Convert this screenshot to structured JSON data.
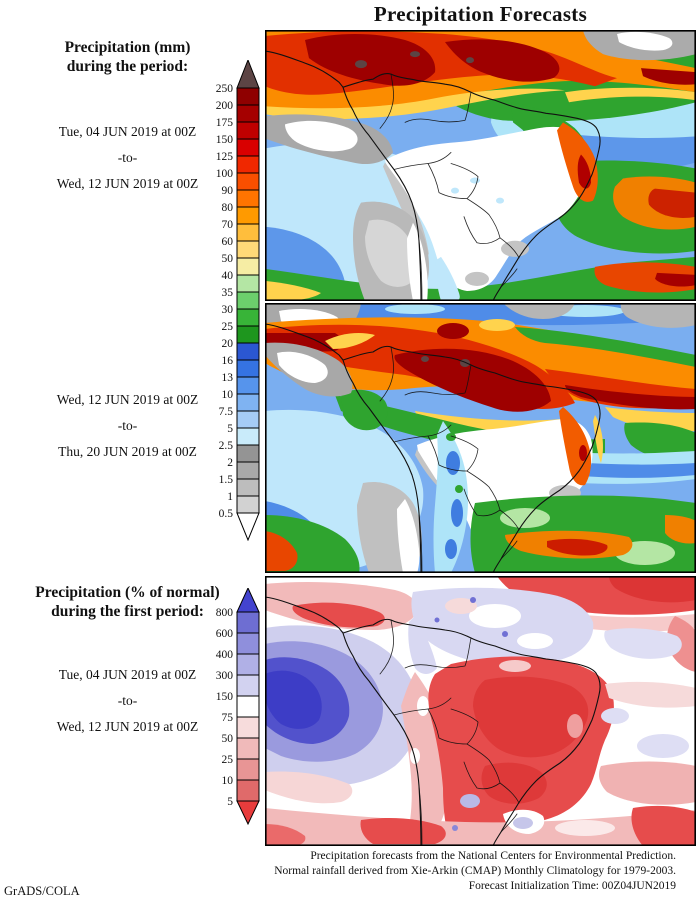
{
  "title": "Precipitation Forecasts",
  "panels": {
    "p1": {
      "heading1": "Precipitation (mm)",
      "heading2": "during the period:",
      "date_start": "Tue, 04 JUN 2019 at 00Z",
      "sep": "-to-",
      "date_end": "Wed, 12 JUN 2019 at 00Z"
    },
    "p2": {
      "date_start": "Wed, 12 JUN 2019 at 00Z",
      "sep": "-to-",
      "date_end": "Thu, 20 JUN 2019 at 00Z"
    },
    "p3": {
      "heading1": "Precipitation (% of normal)",
      "heading2": "during the first period:",
      "date_start": "Tue, 04 JUN 2019 at 00Z",
      "sep": "-to-",
      "date_end": "Wed, 12 JUN 2019 at 00Z"
    }
  },
  "colorbars": {
    "mm": {
      "labels": [
        "250",
        "200",
        "175",
        "150",
        "125",
        "100",
        "90",
        "80",
        "70",
        "60",
        "50",
        "40",
        "35",
        "30",
        "25",
        "20",
        "16",
        "13",
        "10",
        "7.5",
        "5",
        "2.5",
        "2",
        "1.5",
        "1",
        "0.5"
      ],
      "segment_colors": [
        "#8f0000",
        "#a50000",
        "#bf0000",
        "#d90000",
        "#f02800",
        "#fa4f00",
        "#ff7400",
        "#ff9a00",
        "#ffbe3c",
        "#ffd978",
        "#f6eda4",
        "#b4e6a4",
        "#6ccf6c",
        "#38b438",
        "#1e961e",
        "#2b57d2",
        "#3573e3",
        "#5694ec",
        "#7fb3f2",
        "#a5ccf6",
        "#c9ebfa",
        "#949494",
        "#a9a9a9",
        "#bdbdbd",
        "#d2d2d2"
      ],
      "arrow_top_color": "#5c4444",
      "arrow_bottom_color": "#ffffff"
    },
    "pct": {
      "labels": [
        "800",
        "600",
        "400",
        "300",
        "150",
        "75",
        "50",
        "25",
        "10",
        "5"
      ],
      "segment_colors": [
        "#6e6ed2",
        "#8f8fdc",
        "#b0b0e6",
        "#d2d2f0",
        "#ffffff",
        "#f7dcdc",
        "#f0baba",
        "#e89595",
        "#e06a6a"
      ],
      "arrow_top_color": "#4343cf",
      "arrow_bottom_color": "#e83c3c"
    }
  },
  "footer": {
    "line1": "Precipitation forecasts from the National Centers for Environmental Prediction.",
    "line2": "Normal rainfall derived from Xie-Arkin (CMAP) Monthly Climatology for 1979-2003.",
    "line3": "Forecast Initialization Time: 00Z04JUN2019"
  },
  "credit": "GrADS/COLA",
  "chart_data": [
    {
      "type": "map",
      "title": "Precipitation (mm) Tue 04 JUN 2019 00Z to Wed 12 JUN 2019 00Z",
      "region": "South America",
      "units": "mm",
      "levels": [
        0.5,
        1,
        1.5,
        2,
        2.5,
        5,
        7.5,
        10,
        13,
        16,
        20,
        25,
        30,
        35,
        40,
        50,
        60,
        70,
        80,
        90,
        100,
        125,
        150,
        175,
        200,
        250
      ],
      "legend_position": "left"
    },
    {
      "type": "map",
      "title": "Precipitation (mm) Wed 12 JUN 2019 00Z to Thu 20 JUN 2019 00Z",
      "region": "South America",
      "units": "mm",
      "levels": [
        0.5,
        1,
        1.5,
        2,
        2.5,
        5,
        7.5,
        10,
        13,
        16,
        20,
        25,
        30,
        35,
        40,
        50,
        60,
        70,
        80,
        90,
        100,
        125,
        150,
        175,
        200,
        250
      ],
      "legend_position": "left"
    },
    {
      "type": "map",
      "title": "Precipitation (% of normal) Tue 04 JUN 2019 00Z to Wed 12 JUN 2019 00Z",
      "region": "South America",
      "units": "% of normal",
      "levels": [
        5,
        10,
        25,
        50,
        75,
        150,
        300,
        400,
        600,
        800
      ],
      "legend_position": "left"
    }
  ]
}
